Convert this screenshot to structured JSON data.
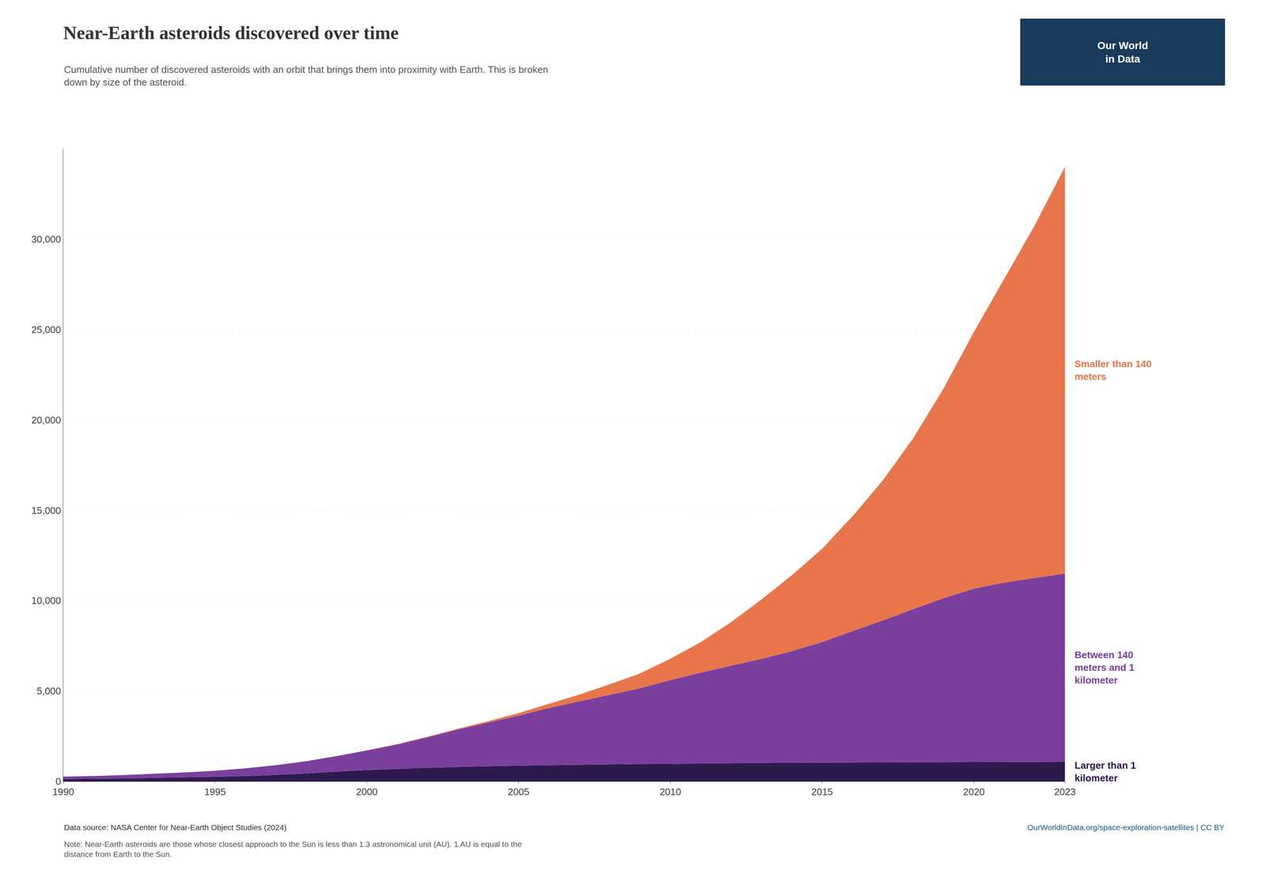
{
  "chart_data": {
    "type": "area",
    "stacked": true,
    "title": "Near-Earth asteroids discovered over time",
    "subtitle": "Cumulative number of discovered asteroids with an orbit that brings them into proximity with Earth. This is broken\ndown by size of the asteroid.",
    "source": "Data source: NASA Center for Near-Earth Object Studies (2024)",
    "source_url": "OurWorldInData.org/space-exploration-satellites | CC BY",
    "note": "Note: Near-Earth asteroids are those whose closest approach to the Sun is less than 1.3 astronomical unit (AU). 1 AU is equal to the\ndistance from Earth to the Sun.",
    "logo": {
      "text": "Our World\nin Data",
      "color": "#1a3a5c",
      "text_color": "#ffffff"
    },
    "x": [
      1990,
      1991,
      1992,
      1993,
      1994,
      1995,
      1996,
      1997,
      1998,
      1999,
      2000,
      2001,
      2002,
      2003,
      2004,
      2005,
      2006,
      2007,
      2008,
      2009,
      2010,
      2011,
      2012,
      2013,
      2014,
      2015,
      2016,
      2017,
      2018,
      2019,
      2020,
      2021,
      2022,
      2023
    ],
    "series": [
      {
        "name": "Larger than 1\nkilometer",
        "color": "#2d1b4e",
        "values": [
          134,
          148,
          167,
          193,
          220,
          248,
          295,
          357,
          435,
          541,
          625,
          693,
          750,
          798,
          838,
          870,
          896,
          921,
          942,
          960,
          972,
          992,
          1007,
          1020,
          1033,
          1040,
          1046,
          1052,
          1058,
          1064,
          1070,
          1077,
          1083,
          1088
        ]
      },
      {
        "name": "Between 140\nmeters and 1\nkilometer",
        "color": "#7b3f9e",
        "values": [
          126,
          148,
          182,
          225,
          276,
          341,
          427,
          539,
          679,
          856,
          1083,
          1349,
          1691,
          2067,
          2408,
          2770,
          3163,
          3502,
          3835,
          4191,
          4634,
          5019,
          5391,
          5758,
          6168,
          6668,
          7266,
          7849,
          8473,
          9066,
          9595,
          9917,
          10167,
          10416
        ]
      },
      {
        "name": "Smaller than 140\nmeters",
        "color": "#e8764a",
        "values": [
          0,
          0,
          0,
          0,
          0,
          0,
          0,
          1,
          2,
          5,
          9,
          16,
          28,
          50,
          82,
          140,
          230,
          380,
          590,
          820,
          1180,
          1690,
          2410,
          3280,
          4200,
          5160,
          6350,
          7750,
          9450,
          11600,
          14200,
          16800,
          19500,
          22500
        ]
      }
    ],
    "xlim": [
      1990,
      2023
    ],
    "ylim": [
      0,
      35000
    ],
    "xticks": [
      1990,
      1995,
      2000,
      2005,
      2010,
      2015,
      2020,
      2023
    ],
    "yticks": [
      0,
      {
        "value": 5000,
        "label": "5,000"
      },
      {
        "value": 10000,
        "label": "10,000"
      },
      {
        "value": 15000,
        "label": "15,000"
      },
      {
        "value": 20000,
        "label": "20,000"
      },
      {
        "value": 25000,
        "label": "25,000"
      },
      {
        "value": 30000,
        "label": "30,000"
      }
    ],
    "grid": true
  }
}
